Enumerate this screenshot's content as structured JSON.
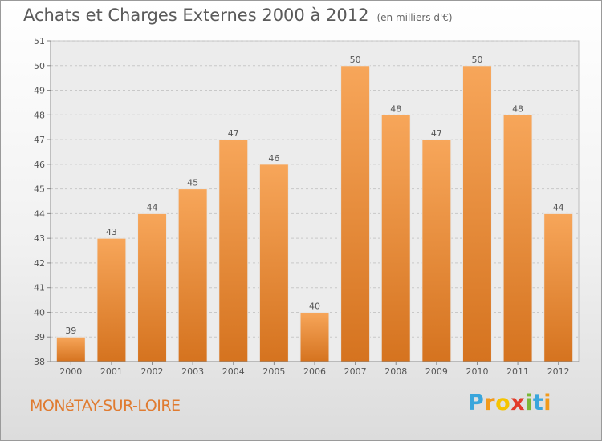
{
  "title": "Achats et Charges Externes 2000 à 2012",
  "title_unit": "(en milliers d'€)",
  "commune": "MONéTAY-SUR-LOIRE",
  "brand": {
    "letters": [
      "P",
      "r",
      "o",
      "x",
      "i",
      "t",
      "i"
    ],
    "colors": [
      "#3aa6dc",
      "#f29a1b",
      "#f5c400",
      "#e23b2a",
      "#7ab836",
      "#3aa6dc",
      "#f29a1b"
    ]
  },
  "colors": {
    "bar_top": "#f7a65a",
    "bar_bottom": "#d5731f",
    "grid": "#c8c8c8",
    "text": "#555555"
  },
  "chart_data": {
    "type": "bar",
    "categories": [
      "2000",
      "2001",
      "2002",
      "2003",
      "2004",
      "2005",
      "2006",
      "2007",
      "2008",
      "2009",
      "2010",
      "2011",
      "2012"
    ],
    "values": [
      39,
      43,
      44,
      45,
      47,
      46,
      40,
      50,
      48,
      47,
      50,
      48,
      44
    ],
    "ylim": [
      38,
      51
    ],
    "yticks": [
      38,
      39,
      40,
      41,
      42,
      43,
      44,
      45,
      46,
      47,
      48,
      49,
      50,
      51
    ],
    "grid": true
  }
}
